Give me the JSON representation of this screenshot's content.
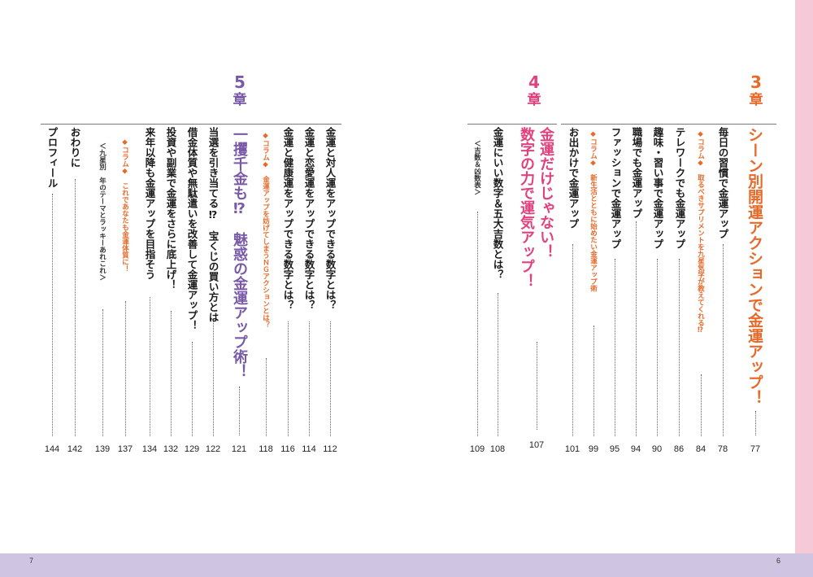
{
  "footer": {
    "left_page": "7",
    "right_page": "6"
  },
  "chapters": [
    {
      "num": "3",
      "kanji": "章",
      "color": "#e86a2a"
    },
    {
      "num": "4",
      "kanji": "章",
      "color": "#e0427f"
    },
    {
      "num": "5",
      "kanji": "章",
      "color": "#7a5aa8"
    }
  ],
  "ch3": {
    "title": "シーン別開運アクションで金運アップ！",
    "title_page": "77",
    "e1": "毎日の習慣で金運アップ",
    "e1_page": "78",
    "c1": "◆コラム◆　取るべきサプリメントを九星気学が教えてくれる⁉",
    "c1_page": "84",
    "e2": "テレワークでも金運アップ",
    "e2_page": "86",
    "e3": "趣味・習い事で金運アップ",
    "e3_page": "90",
    "e4": "職場でも金運アップ",
    "e4_page": "94",
    "e5": "ファッションで金運アップ",
    "e5_page": "95",
    "c2": "◆コラム◆　新生活とともに始めたい金運アップ術",
    "c2_page": "99",
    "e6": "お出かけで金運アップ",
    "e6_page": "101"
  },
  "ch4": {
    "title1": "金運だけじゃない！",
    "title2": "数字の力で運気アップ！",
    "title_page": "107",
    "e1": "金運にいい数字＆五大吉数とは？",
    "e1_page": "108",
    "n1": "＜吉数＆凶数表＞",
    "n1_page": "109"
  },
  "ch5": {
    "title": "一攫千金も⁉　魅惑の金運アップ術！",
    "title_page": "121",
    "e1": "金運と対人運をアップできる数字とは？",
    "e1_page": "112",
    "e2": "金運と恋愛運をアップできる数字とは？",
    "e2_page": "114",
    "e3": "金運と健康運をアップできる数字とは？",
    "e3_page": "116",
    "c1": "◆コラム◆　金運アップを妨げてしまうＮＧアクションとは？",
    "c1_page": "118",
    "e4": "当選を引き当てる⁉　宝くじの買い方とは",
    "e4_page": "122",
    "e5": "借金体質や無駄遣いを改善して金運アップ！",
    "e5_page": "129",
    "e6": "投資や副業で金運をさらに底上げ！",
    "e6_page": "132",
    "e7": "来年以降も金運アップを目指そう",
    "e7_page": "134",
    "c2": "◆コラム◆　これであなたも金運体質に！",
    "c2_page": "137",
    "n1": "＜九星別　年のテーマとラッキーあれこれ＞",
    "n1_page": "139",
    "e8": "おわりに",
    "e8_page": "142",
    "e9": "プロフィール",
    "e9_page": "144"
  }
}
